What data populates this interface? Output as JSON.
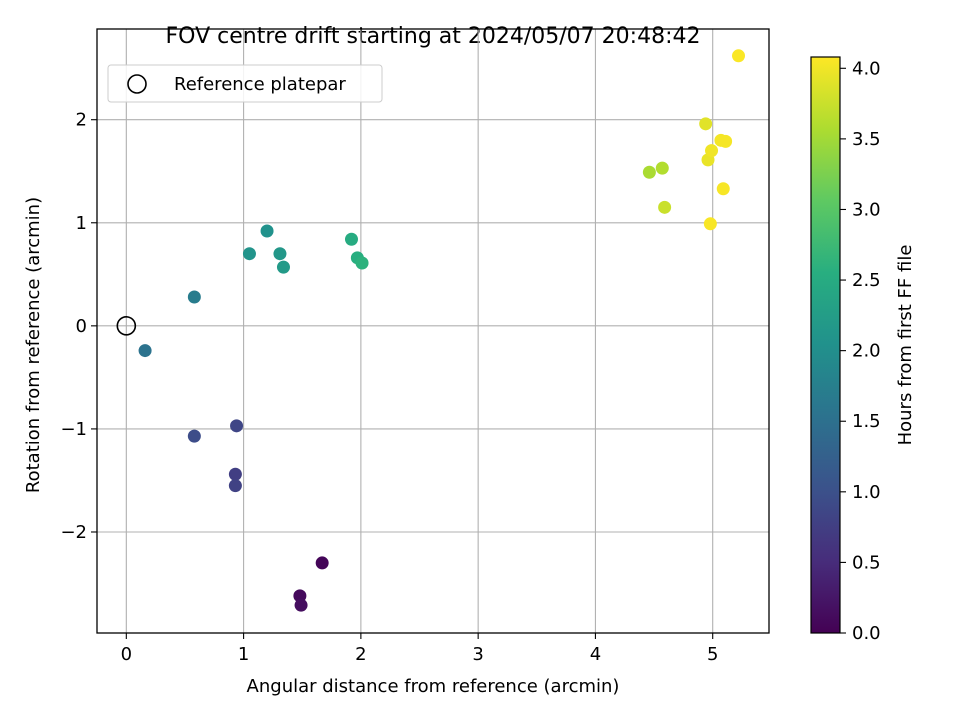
{
  "chart_data": {
    "type": "scatter",
    "title": "FOV centre drift starting at 2024/05/07 20:48:42",
    "xlabel": "Angular distance from reference (arcmin)",
    "ylabel": "Rotation from reference (arcmin)",
    "xlim": [
      -0.25,
      5.48
    ],
    "ylim": [
      -2.98,
      2.88
    ],
    "xticks": [
      0,
      1,
      2,
      3,
      4,
      5
    ],
    "xtick_labels": [
      "0",
      "1",
      "2",
      "3",
      "4",
      "5"
    ],
    "yticks": [
      -2,
      -1,
      0,
      1,
      2
    ],
    "ytick_labels": [
      "−2",
      "−1",
      "0",
      "1",
      "2"
    ],
    "grid": true,
    "legend": {
      "placement": "top-left",
      "entries": [
        {
          "label": "Reference platepar",
          "marker": "open-circle"
        }
      ]
    },
    "reference_point": {
      "x": 0,
      "y": 0
    },
    "colorbar": {
      "label": "Hours from first FF file",
      "colormap": "viridis",
      "range": [
        0.0,
        4.08
      ],
      "ticks": [
        0.0,
        0.5,
        1.0,
        1.5,
        2.0,
        2.5,
        3.0,
        3.5,
        4.0
      ],
      "tick_labels": [
        "0.0",
        "0.5",
        "1.0",
        "1.5",
        "2.0",
        "2.5",
        "3.0",
        "3.5",
        "4.0"
      ]
    },
    "points": [
      {
        "x": 1.67,
        "y": -2.3,
        "c": 0.05
      },
      {
        "x": 1.48,
        "y": -2.62,
        "c": 0.1
      },
      {
        "x": 1.49,
        "y": -2.71,
        "c": 0.15
      },
      {
        "x": 0.93,
        "y": -1.44,
        "c": 0.75
      },
      {
        "x": 0.93,
        "y": -1.55,
        "c": 0.8
      },
      {
        "x": 0.94,
        "y": -0.97,
        "c": 0.85
      },
      {
        "x": 0.58,
        "y": -1.07,
        "c": 0.95
      },
      {
        "x": 0.16,
        "y": -0.24,
        "c": 1.55
      },
      {
        "x": 0.58,
        "y": 0.28,
        "c": 1.7
      },
      {
        "x": 1.2,
        "y": 0.92,
        "c": 2.05
      },
      {
        "x": 1.05,
        "y": 0.7,
        "c": 2.1
      },
      {
        "x": 1.31,
        "y": 0.7,
        "c": 2.15
      },
      {
        "x": 1.34,
        "y": 0.57,
        "c": 2.2
      },
      {
        "x": 1.92,
        "y": 0.84,
        "c": 2.5
      },
      {
        "x": 1.97,
        "y": 0.66,
        "c": 2.55
      },
      {
        "x": 2.01,
        "y": 0.61,
        "c": 2.6
      },
      {
        "x": 4.46,
        "y": 1.49,
        "c": 3.55
      },
      {
        "x": 4.57,
        "y": 1.53,
        "c": 3.6
      },
      {
        "x": 4.59,
        "y": 1.15,
        "c": 3.75
      },
      {
        "x": 4.94,
        "y": 1.96,
        "c": 3.9
      },
      {
        "x": 4.96,
        "y": 1.61,
        "c": 3.95
      },
      {
        "x": 4.99,
        "y": 1.7,
        "c": 4.0
      },
      {
        "x": 5.07,
        "y": 1.8,
        "c": 4.02
      },
      {
        "x": 5.11,
        "y": 1.79,
        "c": 4.03
      },
      {
        "x": 5.09,
        "y": 1.33,
        "c": 4.04
      },
      {
        "x": 4.98,
        "y": 0.99,
        "c": 4.05
      },
      {
        "x": 5.22,
        "y": 2.62,
        "c": 4.06
      }
    ]
  }
}
